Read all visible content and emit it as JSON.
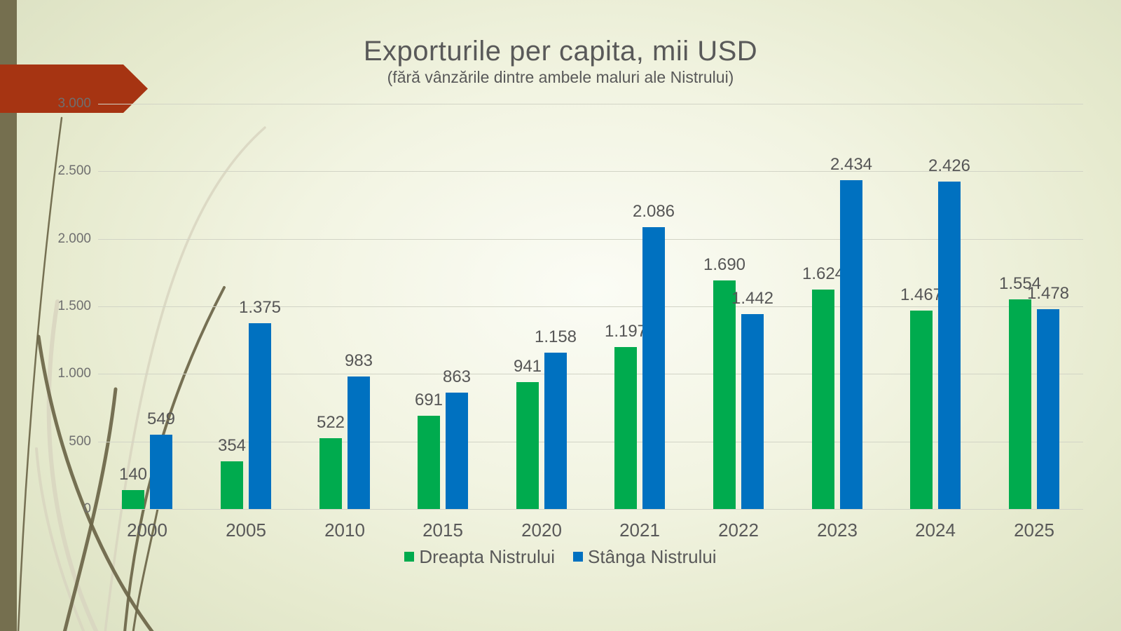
{
  "slide": {
    "title": "Exporturile per capita, mii USD",
    "subtitle": "(fără vânzările dintre ambele maluri ale Nistrului)"
  },
  "colors": {
    "series_dreapta": "#00ab4e",
    "series_stanga": "#0071c0",
    "arrow_accent": "#a63412",
    "sidebar": "#756f4f",
    "title_text": "#595959",
    "label_text": "#565656",
    "axis_text": "#6f6f6f",
    "gridline": "#d2d4c6",
    "grass_dark": "#6b6548",
    "grass_light": "#d8d5bf"
  },
  "chart_data": {
    "type": "bar",
    "title": "Exporturile per capita, mii USD",
    "subtitle": "(fără vânzările dintre ambele maluri ale Nistrului)",
    "categories": [
      "2000",
      "2005",
      "2010",
      "2015",
      "2020",
      "2021",
      "2022",
      "2023",
      "2024",
      "2025"
    ],
    "series": [
      {
        "name": "Dreapta Nistrului",
        "color": "#00ab4e",
        "values": [
          140,
          354,
          522,
          691,
          941,
          1197,
          1690,
          1624,
          1467,
          1554
        ],
        "labels": [
          "140",
          "354",
          "522",
          "691",
          "941",
          "1.197",
          "1.690",
          "1.624",
          "1.467",
          "1.554"
        ]
      },
      {
        "name": "Stânga Nistrului",
        "color": "#0071c0",
        "values": [
          549,
          1375,
          983,
          863,
          1158,
          2086,
          1442,
          2434,
          2426,
          1478
        ],
        "labels": [
          "549",
          "1.375",
          "983",
          "863",
          "1.158",
          "2.086",
          "1.442",
          "2.434",
          "2.426",
          "1.478"
        ]
      }
    ],
    "y_axis": {
      "min": 0,
      "max": 3000,
      "step": 500,
      "tick_labels": [
        "0",
        "500",
        "1.000",
        "1.500",
        "2.000",
        "2.500",
        "3.000"
      ]
    },
    "grid": true,
    "legend_position": "bottom"
  }
}
